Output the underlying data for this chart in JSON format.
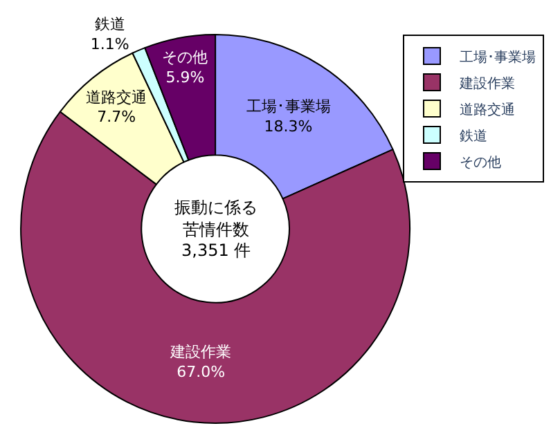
{
  "chart_data": {
    "type": "donut",
    "categories": [
      "工場･事業場",
      "建設作業",
      "道路交通",
      "鉄道",
      "その他"
    ],
    "values": [
      18.3,
      67.0,
      7.7,
      1.1,
      5.9
    ],
    "colors": [
      "#9999ff",
      "#993366",
      "#ffffcc",
      "#ccffff",
      "#660066"
    ],
    "value_labels": [
      "18.3%",
      "67.0%",
      "7.7%",
      "1.1%",
      "5.9%"
    ],
    "annotations": [
      "振動に係る",
      "苦情件数",
      "3,351 件"
    ],
    "legend": "top right"
  }
}
